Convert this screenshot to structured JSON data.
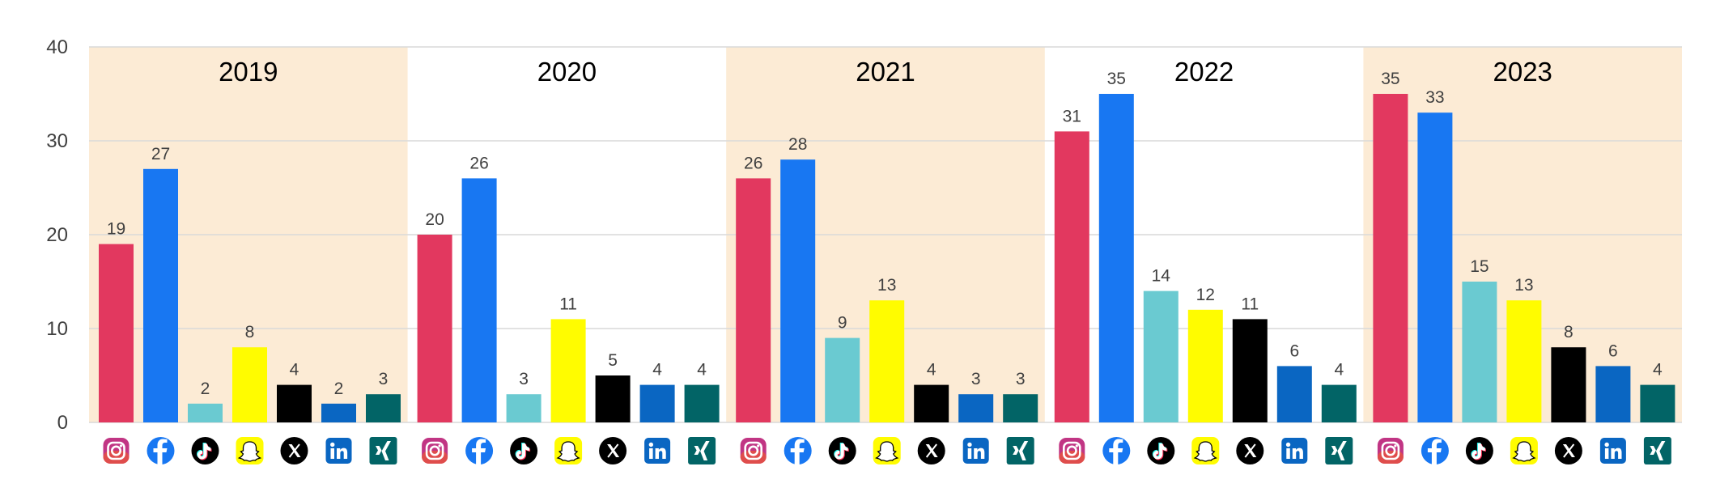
{
  "chart_data": {
    "type": "bar",
    "title": "",
    "xlabel": "",
    "ylabel": "",
    "ylim": [
      0,
      40
    ],
    "y_ticks": [
      "0",
      "10",
      "20",
      "30",
      "40"
    ],
    "grid": true,
    "platforms": [
      {
        "icon": "instagram-icon",
        "color": "#E2385F"
      },
      {
        "icon": "facebook-icon",
        "color": "#1877F2"
      },
      {
        "icon": "tiktok-icon",
        "color": "#6ACAD1"
      },
      {
        "icon": "snapchat-icon",
        "color": "#FFFC00"
      },
      {
        "icon": "x-icon",
        "color": "#000000"
      },
      {
        "icon": "linkedin-icon",
        "color": "#0A66C2"
      },
      {
        "icon": "xing-icon",
        "color": "#026466"
      }
    ],
    "groups": [
      {
        "label": "2019",
        "values": [
          19,
          27,
          2,
          8,
          4,
          2,
          3
        ],
        "shaded": true
      },
      {
        "label": "2020",
        "values": [
          20,
          26,
          3,
          11,
          5,
          4,
          4
        ],
        "shaded": false
      },
      {
        "label": "2021",
        "values": [
          26,
          28,
          9,
          13,
          4,
          3,
          3
        ],
        "shaded": true
      },
      {
        "label": "2022",
        "values": [
          31,
          35,
          14,
          12,
          11,
          6,
          4
        ],
        "shaded": false
      },
      {
        "label": "2023",
        "values": [
          35,
          33,
          15,
          13,
          8,
          6,
          4
        ],
        "shaded": true
      }
    ],
    "band_color": "#FCEBD5"
  }
}
